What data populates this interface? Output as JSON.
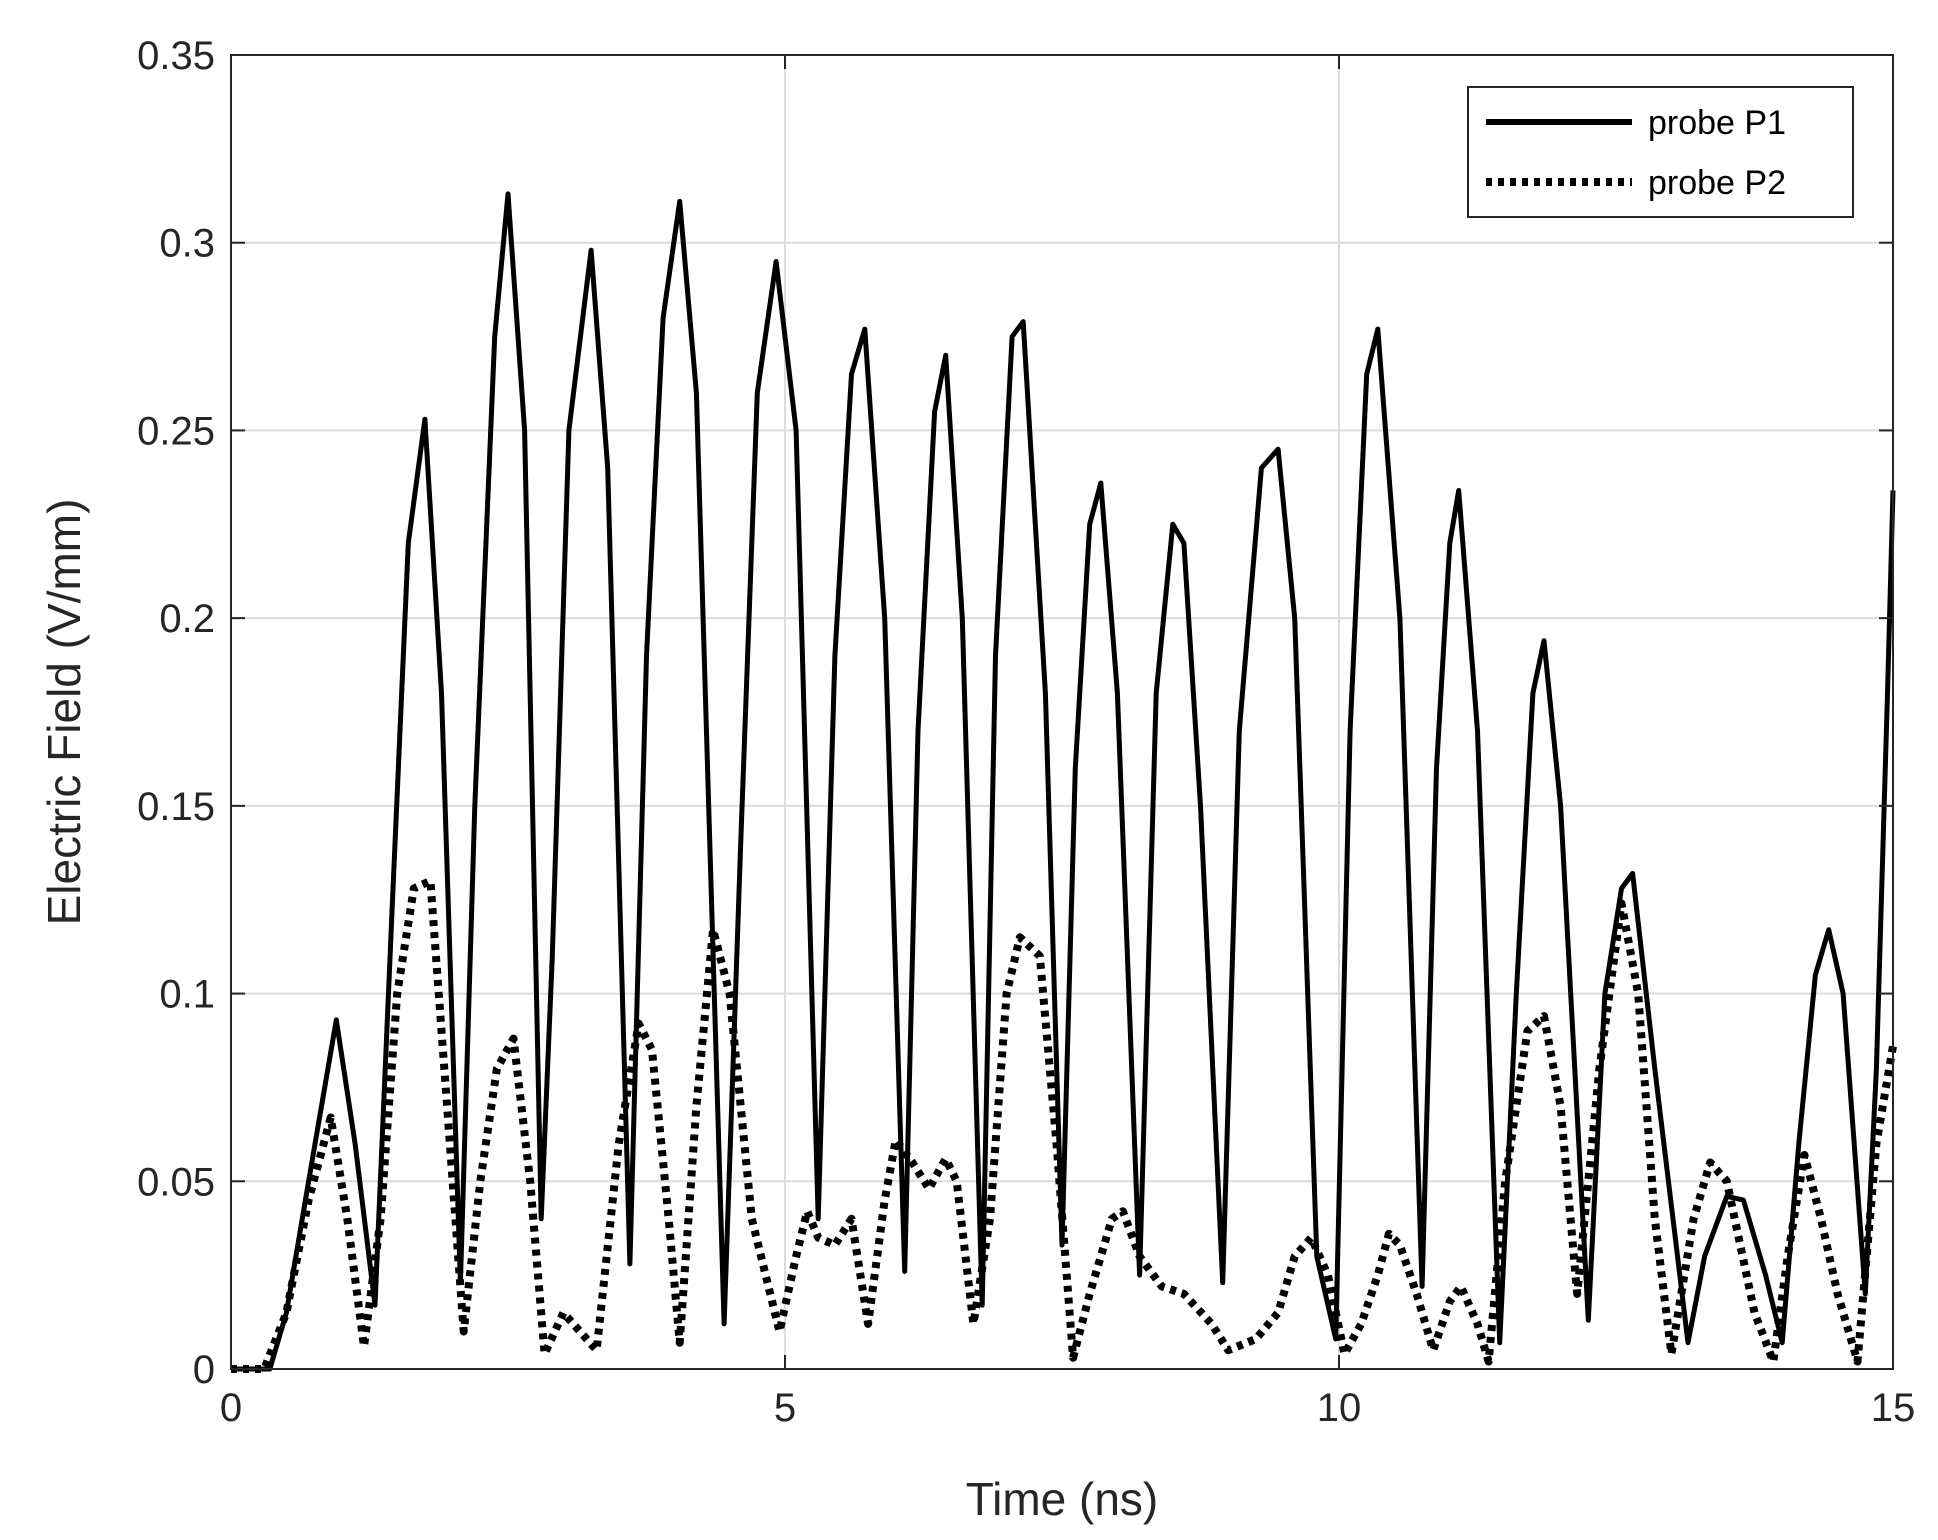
{
  "chart_data": {
    "type": "line",
    "title": "",
    "xlabel": "Time (ns)",
    "ylabel": "Electric Field (V/mm)",
    "xlim": [
      0,
      15
    ],
    "ylim": [
      0,
      0.35
    ],
    "xticks": [
      0,
      5,
      10,
      15
    ],
    "xtick_labels": [
      "0",
      "5",
      "10",
      "15"
    ],
    "yticks": [
      0,
      0.05,
      0.1,
      0.15,
      0.2,
      0.25,
      0.3,
      0.35
    ],
    "ytick_labels": [
      "0",
      "0.05",
      "0.1",
      "0.15",
      "0.2",
      "0.25",
      "0.3",
      "0.35"
    ],
    "grid": true,
    "legend_position": "top-right",
    "series": [
      {
        "name": "probe P1",
        "style": "solid",
        "color": "#000000",
        "points": [
          [
            0.0,
            0.0
          ],
          [
            0.2,
            0.0
          ],
          [
            0.35,
            0.0
          ],
          [
            0.5,
            0.015
          ],
          [
            0.7,
            0.05
          ],
          [
            0.95,
            0.093
          ],
          [
            1.12,
            0.06
          ],
          [
            1.3,
            0.017
          ],
          [
            1.45,
            0.12
          ],
          [
            1.6,
            0.22
          ],
          [
            1.75,
            0.253
          ],
          [
            1.9,
            0.18
          ],
          [
            2.07,
            0.023
          ],
          [
            2.2,
            0.15
          ],
          [
            2.38,
            0.275
          ],
          [
            2.5,
            0.313
          ],
          [
            2.65,
            0.25
          ],
          [
            2.8,
            0.04
          ],
          [
            2.9,
            0.11
          ],
          [
            3.05,
            0.25
          ],
          [
            3.25,
            0.298
          ],
          [
            3.4,
            0.24
          ],
          [
            3.6,
            0.028
          ],
          [
            3.75,
            0.19
          ],
          [
            3.9,
            0.28
          ],
          [
            4.05,
            0.311
          ],
          [
            4.2,
            0.26
          ],
          [
            4.45,
            0.012
          ],
          [
            4.6,
            0.14
          ],
          [
            4.75,
            0.26
          ],
          [
            4.92,
            0.295
          ],
          [
            5.1,
            0.25
          ],
          [
            5.3,
            0.04
          ],
          [
            5.45,
            0.19
          ],
          [
            5.6,
            0.265
          ],
          [
            5.72,
            0.277
          ],
          [
            5.9,
            0.2
          ],
          [
            6.08,
            0.026
          ],
          [
            6.2,
            0.17
          ],
          [
            6.35,
            0.255
          ],
          [
            6.45,
            0.27
          ],
          [
            6.6,
            0.2
          ],
          [
            6.78,
            0.017
          ],
          [
            6.9,
            0.19
          ],
          [
            7.05,
            0.275
          ],
          [
            7.15,
            0.279
          ],
          [
            7.35,
            0.18
          ],
          [
            7.5,
            0.033
          ],
          [
            7.62,
            0.16
          ],
          [
            7.75,
            0.225
          ],
          [
            7.85,
            0.236
          ],
          [
            8.0,
            0.18
          ],
          [
            8.2,
            0.025
          ],
          [
            8.35,
            0.18
          ],
          [
            8.5,
            0.225
          ],
          [
            8.6,
            0.22
          ],
          [
            8.75,
            0.15
          ],
          [
            8.95,
            0.023
          ],
          [
            9.1,
            0.17
          ],
          [
            9.3,
            0.24
          ],
          [
            9.45,
            0.245
          ],
          [
            9.6,
            0.2
          ],
          [
            9.8,
            0.03
          ],
          [
            9.97,
            0.008
          ],
          [
            10.1,
            0.17
          ],
          [
            10.25,
            0.265
          ],
          [
            10.35,
            0.277
          ],
          [
            10.55,
            0.2
          ],
          [
            10.75,
            0.022
          ],
          [
            10.88,
            0.16
          ],
          [
            11.0,
            0.22
          ],
          [
            11.08,
            0.234
          ],
          [
            11.25,
            0.17
          ],
          [
            11.45,
            0.007
          ],
          [
            11.6,
            0.1
          ],
          [
            11.75,
            0.18
          ],
          [
            11.85,
            0.194
          ],
          [
            12.0,
            0.15
          ],
          [
            12.25,
            0.013
          ],
          [
            12.4,
            0.1
          ],
          [
            12.55,
            0.128
          ],
          [
            12.65,
            0.132
          ],
          [
            12.85,
            0.08
          ],
          [
            13.15,
            0.007
          ],
          [
            13.3,
            0.03
          ],
          [
            13.5,
            0.046
          ],
          [
            13.65,
            0.045
          ],
          [
            13.85,
            0.025
          ],
          [
            14.0,
            0.007
          ],
          [
            14.15,
            0.06
          ],
          [
            14.3,
            0.105
          ],
          [
            14.42,
            0.117
          ],
          [
            14.55,
            0.1
          ],
          [
            14.75,
            0.02
          ],
          [
            14.85,
            0.08
          ],
          [
            14.95,
            0.18
          ],
          [
            15.0,
            0.234
          ]
        ]
      },
      {
        "name": "probe P2",
        "style": "dotted",
        "color": "#000000",
        "points": [
          [
            0.0,
            0.0
          ],
          [
            0.2,
            0.0
          ],
          [
            0.3,
            0.0
          ],
          [
            0.5,
            0.015
          ],
          [
            0.7,
            0.045
          ],
          [
            0.9,
            0.067
          ],
          [
            1.05,
            0.04
          ],
          [
            1.2,
            0.006
          ],
          [
            1.35,
            0.04
          ],
          [
            1.5,
            0.1
          ],
          [
            1.65,
            0.128
          ],
          [
            1.8,
            0.13
          ],
          [
            1.95,
            0.07
          ],
          [
            2.1,
            0.01
          ],
          [
            2.25,
            0.05
          ],
          [
            2.4,
            0.08
          ],
          [
            2.55,
            0.088
          ],
          [
            2.7,
            0.05
          ],
          [
            2.83,
            0.004
          ],
          [
            3.0,
            0.015
          ],
          [
            3.15,
            0.01
          ],
          [
            3.3,
            0.005
          ],
          [
            3.5,
            0.06
          ],
          [
            3.68,
            0.092
          ],
          [
            3.8,
            0.085
          ],
          [
            3.95,
            0.04
          ],
          [
            4.05,
            0.007
          ],
          [
            4.2,
            0.07
          ],
          [
            4.35,
            0.117
          ],
          [
            4.5,
            0.1
          ],
          [
            4.7,
            0.04
          ],
          [
            4.95,
            0.01
          ],
          [
            5.1,
            0.03
          ],
          [
            5.2,
            0.042
          ],
          [
            5.3,
            0.035
          ],
          [
            5.45,
            0.033
          ],
          [
            5.6,
            0.04
          ],
          [
            5.75,
            0.012
          ],
          [
            5.9,
            0.045
          ],
          [
            6.0,
            0.061
          ],
          [
            6.15,
            0.055
          ],
          [
            6.3,
            0.048
          ],
          [
            6.45,
            0.056
          ],
          [
            6.55,
            0.05
          ],
          [
            6.7,
            0.012
          ],
          [
            6.85,
            0.04
          ],
          [
            7.0,
            0.1
          ],
          [
            7.12,
            0.115
          ],
          [
            7.3,
            0.11
          ],
          [
            7.45,
            0.06
          ],
          [
            7.6,
            0.003
          ],
          [
            7.75,
            0.02
          ],
          [
            7.95,
            0.04
          ],
          [
            8.05,
            0.042
          ],
          [
            8.2,
            0.03
          ],
          [
            8.4,
            0.022
          ],
          [
            8.6,
            0.02
          ],
          [
            8.85,
            0.012
          ],
          [
            9.0,
            0.005
          ],
          [
            9.25,
            0.008
          ],
          [
            9.45,
            0.015
          ],
          [
            9.6,
            0.03
          ],
          [
            9.75,
            0.035
          ],
          [
            9.9,
            0.025
          ],
          [
            10.05,
            0.004
          ],
          [
            10.2,
            0.012
          ],
          [
            10.35,
            0.025
          ],
          [
            10.45,
            0.036
          ],
          [
            10.55,
            0.033
          ],
          [
            10.7,
            0.02
          ],
          [
            10.85,
            0.005
          ],
          [
            11.0,
            0.018
          ],
          [
            11.1,
            0.022
          ],
          [
            11.25,
            0.012
          ],
          [
            11.35,
            0.002
          ],
          [
            11.5,
            0.05
          ],
          [
            11.7,
            0.09
          ],
          [
            11.85,
            0.094
          ],
          [
            12.0,
            0.07
          ],
          [
            12.15,
            0.02
          ],
          [
            12.35,
            0.08
          ],
          [
            12.55,
            0.124
          ],
          [
            12.7,
            0.1
          ],
          [
            12.85,
            0.04
          ],
          [
            13.0,
            0.004
          ],
          [
            13.2,
            0.04
          ],
          [
            13.35,
            0.055
          ],
          [
            13.5,
            0.05
          ],
          [
            13.75,
            0.015
          ],
          [
            13.92,
            0.002
          ],
          [
            14.05,
            0.03
          ],
          [
            14.2,
            0.057
          ],
          [
            14.35,
            0.04
          ],
          [
            14.5,
            0.02
          ],
          [
            14.68,
            0.002
          ],
          [
            14.85,
            0.06
          ],
          [
            15.0,
            0.086
          ]
        ]
      }
    ]
  }
}
